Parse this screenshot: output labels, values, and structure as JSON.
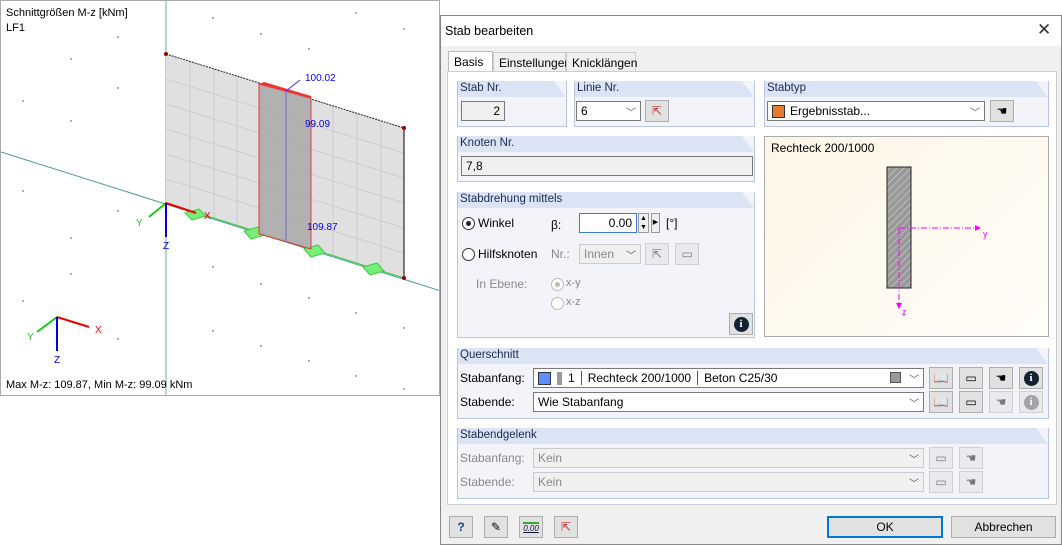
{
  "view": {
    "title": "Schnittgrößen M-z [kNm]",
    "loadcase": "LF1",
    "labels": [
      "100.02",
      "99.09",
      "109.87"
    ],
    "status": "Max M-z: 109.87, Min M-z: 99.09 kNm",
    "axes": {
      "x": "X",
      "y": "Y",
      "z": "Z"
    }
  },
  "dialog": {
    "title": "Stab bearbeiten",
    "close_icon": "close-icon",
    "tabs": [
      {
        "label": "Basis",
        "active": true
      },
      {
        "label": "Einstellungen"
      },
      {
        "label": "Knicklängen"
      }
    ],
    "stab_nr": {
      "header": "Stab Nr.",
      "value": "2"
    },
    "linie_nr": {
      "header": "Linie Nr.",
      "value": "6"
    },
    "stabtyp": {
      "header": "Stabtyp",
      "value": "Ergebnisstab...",
      "color": "#e87a2f"
    },
    "knoten_nr": {
      "header": "Knoten Nr.",
      "value": "7,8"
    },
    "stabdrehung": {
      "header": "Stabdrehung mittels",
      "winkel": "Winkel",
      "beta_label": "β:",
      "beta_value": "0.00",
      "unit": "[°]",
      "hilfsknoten": "Hilfsknoten",
      "nr_label": "Nr.:",
      "nr_value": "Innen",
      "in_ebene": "In Ebene:",
      "xy": "x-y",
      "xz": "x-z",
      "selected": "Winkel"
    },
    "preview": {
      "title": "Rechteck 200/1000",
      "y_axis": "y",
      "z_axis": "z"
    },
    "querschnitt": {
      "header": "Querschnitt",
      "start_label": "Stabanfang:",
      "start_number": "1",
      "start_name": "Rechteck 200/1000",
      "start_material": "Beton C25/30",
      "start_color": "#5b8ff9",
      "end_label": "Stabende:",
      "end_value": "Wie Stabanfang"
    },
    "gelenk": {
      "header": "Stabendgelenk",
      "start_label": "Stabanfang:",
      "start_value": "Kein",
      "end_label": "Stabende:",
      "end_value": "Kein"
    },
    "footer": {
      "ok": "OK",
      "cancel": "Abbrechen",
      "value_icon_text": "0.00"
    }
  }
}
